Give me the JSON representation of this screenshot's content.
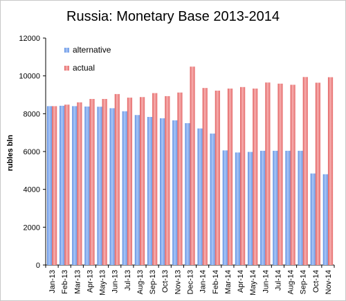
{
  "chart_data": {
    "type": "bar",
    "title": "Russia: Monetary Base 2013-2014",
    "ylabel": "rubles bln",
    "xlabel": "",
    "ylim": [
      0,
      12000
    ],
    "yticks": [
      0,
      2000,
      4000,
      6000,
      8000,
      10000,
      12000
    ],
    "grid": false,
    "legend_position": "top-left",
    "categories": [
      "Jan-13",
      "Feb-13",
      "Mar-13",
      "Apr-13",
      "May-13",
      "Jun-13",
      "Jul-13",
      "Aug-13",
      "Sep-13",
      "Oct-13",
      "Nov-13",
      "Dec-13",
      "Jan-14",
      "Feb-14",
      "Mar-14",
      "Apr-14",
      "May-14",
      "Jun-14",
      "Jul-14",
      "Aug-14",
      "Sep-14",
      "Oct-14",
      "Nov-14"
    ],
    "series": [
      {
        "name": "alternative",
        "color": "#7faaf0",
        "values": [
          8400,
          8420,
          8400,
          8380,
          8370,
          8290,
          8130,
          7930,
          7830,
          7760,
          7650,
          7500,
          7220,
          6950,
          6060,
          5950,
          5980,
          6040,
          6040,
          6040,
          6040,
          4840,
          4800
        ]
      },
      {
        "name": "actual",
        "color": "#f07d7d",
        "values": [
          8400,
          8480,
          8600,
          8780,
          8780,
          9040,
          8850,
          8880,
          9090,
          8930,
          9120,
          10490,
          9360,
          9220,
          9330,
          9410,
          9330,
          9650,
          9590,
          9530,
          9940,
          9640,
          9930
        ]
      }
    ]
  }
}
